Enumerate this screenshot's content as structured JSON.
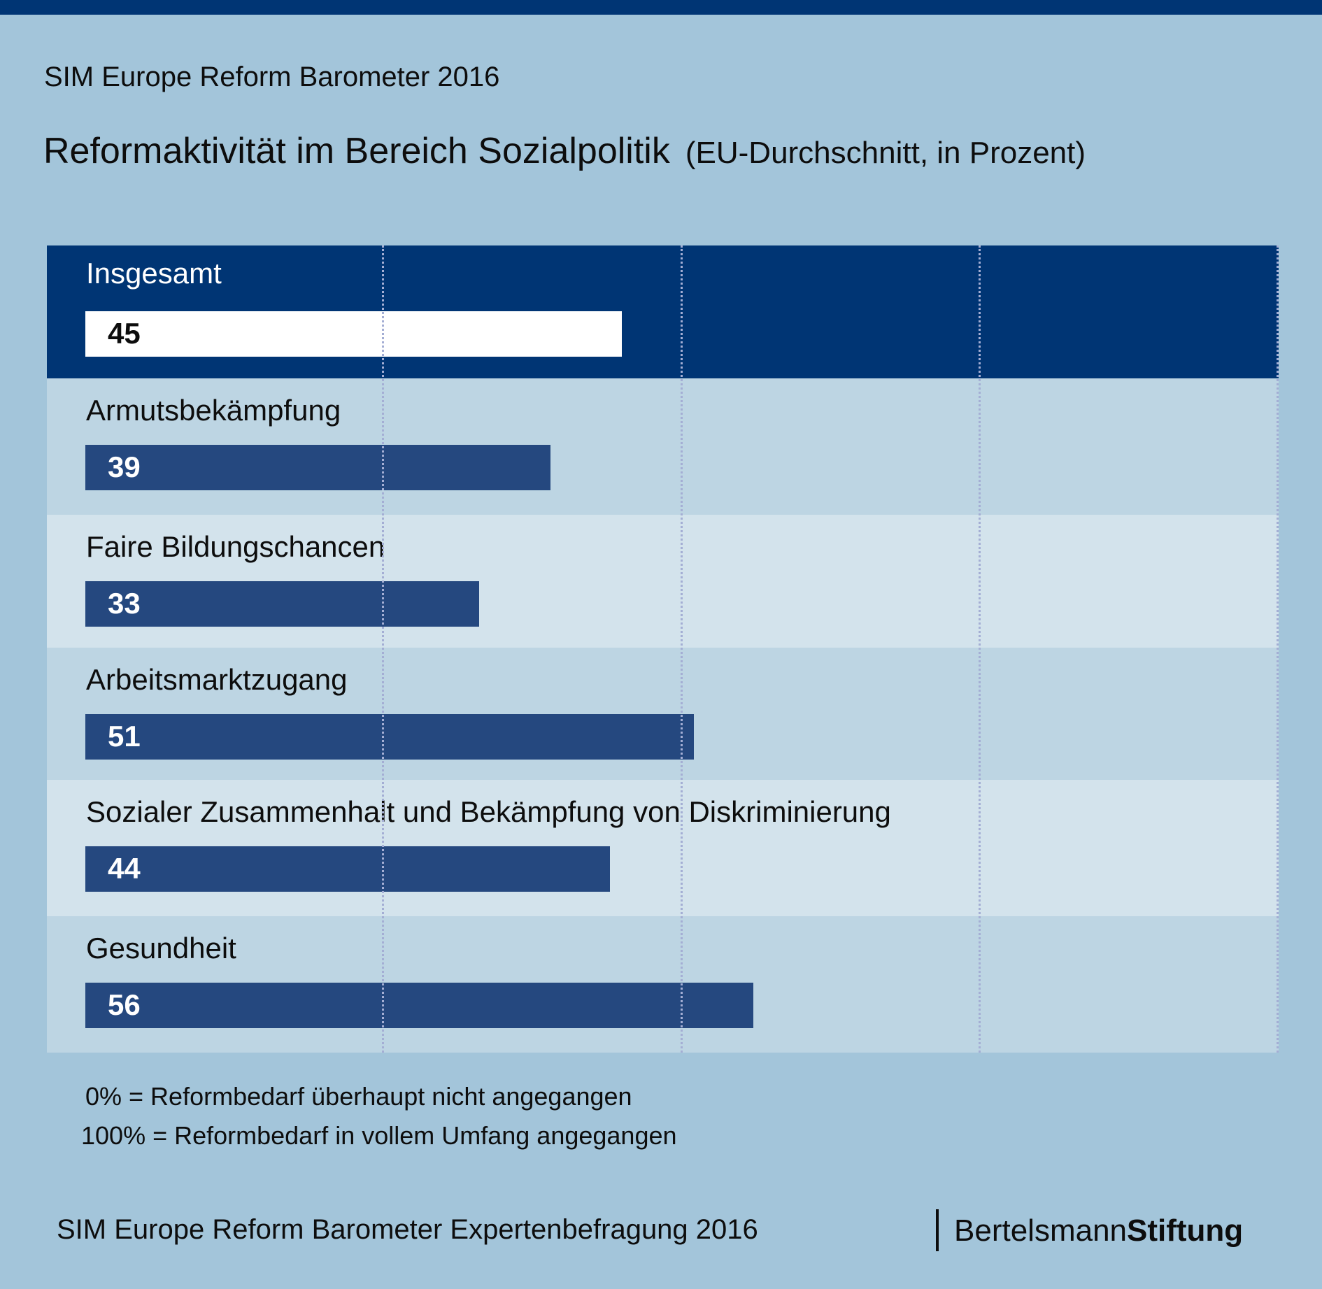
{
  "header": {
    "subtitle": "SIM Europe Reform Barometer 2016",
    "title": "Reformaktivität im Bereich Sozialpolitik",
    "title_suffix": "(EU-Durchschnitt, in Prozent)"
  },
  "colors": {
    "background": "#A3C5DA",
    "header_row": "#003574",
    "bar": "#25487F",
    "row_a": "#BDD5E3",
    "row_b": "#D3E3EC",
    "gridline": "#A4AED4"
  },
  "chart_data": {
    "type": "bar",
    "orientation": "horizontal",
    "title": "Reformaktivität im Bereich Sozialpolitik (EU-Durchschnitt, in Prozent)",
    "xlabel": "",
    "ylabel": "",
    "xlim": [
      0,
      100
    ],
    "gridlines_at": [
      25,
      50,
      75,
      100
    ],
    "grid": true,
    "categories": [
      "Insgesamt",
      "Armutsbekämpfung",
      "Faire Bildungschancen",
      "Arbeitsmarktzugang",
      "Sozialer Zusammenhalt und Bekämpfung von Diskriminierung",
      "Gesundheit"
    ],
    "values": [
      45,
      39,
      33,
      51,
      44,
      56
    ],
    "value_labels": [
      "45",
      "39",
      "33",
      "51",
      "44",
      "56"
    ],
    "highlighted": "Insgesamt"
  },
  "notes": [
    "0% = Reformbedarf überhaupt nicht angegangen",
    "100% = Reformbedarf in vollem Umfang angegangen"
  ],
  "footer": {
    "source": "SIM Europe Reform Barometer Expertenbefragung 2016",
    "logo_regular": "Bertelsmann",
    "logo_bold": "Stiftung"
  }
}
